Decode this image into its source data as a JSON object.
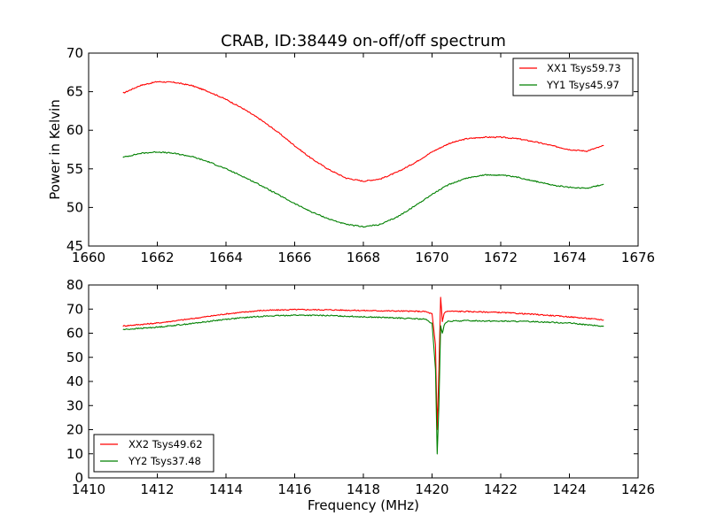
{
  "chart_data": [
    {
      "type": "line",
      "title": "CRAB, ID:38449 on-off/off spectrum",
      "xlabel": "",
      "ylabel": "Power in Kelvin",
      "xlim": [
        1660,
        1676
      ],
      "ylim": [
        45,
        70
      ],
      "xticks": [
        1660,
        1662,
        1664,
        1666,
        1668,
        1670,
        1672,
        1674,
        1676
      ],
      "yticks": [
        45,
        50,
        55,
        60,
        65,
        70
      ],
      "legend_position": "top-right",
      "grid": false,
      "series": [
        {
          "name": "XX1 Tsys59.73",
          "color": "#ff0000",
          "x": [
            1661.0,
            1661.5,
            1662.0,
            1662.5,
            1663.0,
            1663.5,
            1664.0,
            1664.5,
            1665.0,
            1665.5,
            1666.0,
            1666.5,
            1667.0,
            1667.5,
            1668.0,
            1668.5,
            1669.0,
            1669.5,
            1670.0,
            1670.5,
            1671.0,
            1671.5,
            1672.0,
            1672.5,
            1673.0,
            1673.5,
            1674.0,
            1674.5,
            1675.0
          ],
          "y": [
            64.8,
            65.8,
            66.3,
            66.2,
            65.8,
            65.0,
            64.0,
            62.8,
            61.4,
            59.8,
            58.0,
            56.3,
            54.9,
            53.8,
            53.4,
            53.7,
            54.6,
            55.8,
            57.2,
            58.3,
            58.9,
            59.1,
            59.1,
            58.9,
            58.5,
            58.0,
            57.5,
            57.3,
            58.0
          ]
        },
        {
          "name": "YY1 Tsys45.97",
          "color": "#008000",
          "x": [
            1661.0,
            1661.5,
            1662.0,
            1662.5,
            1663.0,
            1663.5,
            1664.0,
            1664.5,
            1665.0,
            1665.5,
            1666.0,
            1666.5,
            1667.0,
            1667.5,
            1668.0,
            1668.5,
            1669.0,
            1669.5,
            1670.0,
            1670.5,
            1671.0,
            1671.5,
            1672.0,
            1672.5,
            1673.0,
            1673.5,
            1674.0,
            1674.5,
            1675.0
          ],
          "y": [
            56.5,
            57.0,
            57.2,
            57.0,
            56.6,
            55.9,
            55.0,
            54.0,
            52.9,
            51.7,
            50.5,
            49.4,
            48.5,
            47.8,
            47.5,
            47.8,
            48.8,
            50.2,
            51.7,
            53.0,
            53.8,
            54.2,
            54.2,
            53.9,
            53.4,
            52.9,
            52.6,
            52.5,
            53.0
          ]
        }
      ]
    },
    {
      "type": "line",
      "title": "",
      "xlabel": "Frequency (MHz)",
      "ylabel": "",
      "xlim": [
        1410,
        1426
      ],
      "ylim": [
        0,
        80
      ],
      "xticks": [
        1410,
        1412,
        1414,
        1416,
        1418,
        1420,
        1422,
        1424,
        1426
      ],
      "yticks": [
        0,
        10,
        20,
        30,
        40,
        50,
        60,
        70,
        80
      ],
      "legend_position": "bottom-left",
      "grid": false,
      "series": [
        {
          "name": "XX2 Tsys49.62",
          "color": "#ff0000",
          "x": [
            1411.0,
            1412.0,
            1413.0,
            1414.0,
            1415.0,
            1416.0,
            1417.0,
            1418.0,
            1419.0,
            1419.8,
            1420.0,
            1420.1,
            1420.15,
            1420.2,
            1420.25,
            1420.3,
            1420.35,
            1420.4,
            1420.5,
            1421.0,
            1422.0,
            1423.0,
            1424.0,
            1425.0
          ],
          "y": [
            63.0,
            64.2,
            66.0,
            68.0,
            69.4,
            69.8,
            69.7,
            69.4,
            69.2,
            69.0,
            68.0,
            55.0,
            20.0,
            45.0,
            75.0,
            65.0,
            68.0,
            69.0,
            69.1,
            69.0,
            68.6,
            67.8,
            66.8,
            65.5
          ]
        },
        {
          "name": "YY2 Tsys37.48",
          "color": "#008000",
          "x": [
            1411.0,
            1412.0,
            1413.0,
            1414.0,
            1415.0,
            1416.0,
            1417.0,
            1418.0,
            1419.0,
            1419.8,
            1420.0,
            1420.1,
            1420.15,
            1420.2,
            1420.25,
            1420.3,
            1420.35,
            1420.4,
            1420.5,
            1421.0,
            1422.0,
            1423.0,
            1424.0,
            1425.0
          ],
          "y": [
            61.5,
            62.5,
            64.0,
            65.8,
            67.0,
            67.5,
            67.3,
            66.8,
            66.3,
            65.8,
            64.0,
            45.0,
            10.0,
            30.0,
            63.0,
            60.0,
            63.0,
            64.5,
            65.0,
            65.2,
            65.0,
            64.8,
            64.2,
            62.8
          ]
        }
      ]
    }
  ]
}
